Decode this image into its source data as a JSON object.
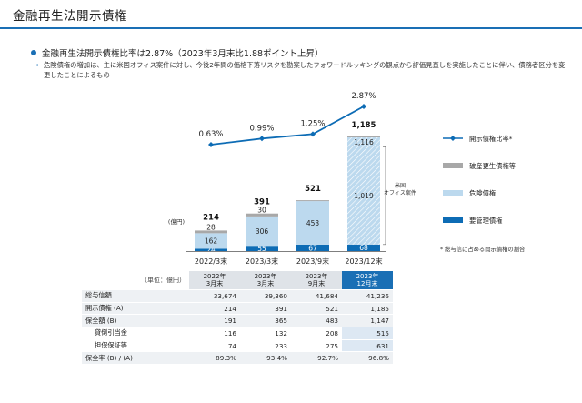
{
  "title": "金融再生法開示債権",
  "bullet_main": "金融再生法開示債権比率は2.87%（2023年3月末比1.88ポイント上昇）",
  "bullet_sub": "危険債権の増加は、主に米国オフィス案件に対し、今後2年間の価格下落リスクを勘案したフォワードルッキングの観点から評価見直しを実施したことに伴い、債務者区分を変更したことによるもの",
  "chart_data": {
    "type": "bar",
    "categories": [
      "2022/3末",
      "2023/3末",
      "2023/9末",
      "2023/12末"
    ],
    "unit_label": "(億円)",
    "series": [
      {
        "name": "要管理債権",
        "values": [
          24,
          55,
          67,
          68
        ],
        "labels": [
          "24",
          "55",
          "67",
          "68"
        ],
        "color": "#0d6cb5"
      },
      {
        "name": "危険債権",
        "values": [
          162,
          306,
          453,
          1116
        ],
        "labels": [
          "162",
          "306",
          "453",
          "1,116"
        ],
        "color": "#bcd9ee"
      },
      {
        "name": "破産更生債権等",
        "values": [
          28,
          30,
          1,
          1
        ],
        "labels": [
          "28",
          "30",
          "",
          ""
        ],
        "color": "#a8a8a8"
      }
    ],
    "totals": [
      "214",
      "391",
      "521",
      "1,185"
    ],
    "us_office_value": "1,019",
    "us_office_label": [
      "米国",
      "オフィス案件"
    ],
    "ratio_series": {
      "name": "開示債権比率",
      "values": [
        0.63,
        0.99,
        1.25,
        2.87
      ],
      "labels": [
        "0.63%",
        "0.99%",
        "1.25%",
        "2.87%"
      ],
      "color": "#0d6cb5"
    },
    "legend": [
      "開示債権比率*",
      "破産更生債権等",
      "危険債権",
      "要管理債権"
    ],
    "footnote": "* 総与信に占める開示債権の割合",
    "ylim": [
      0,
      1250
    ]
  },
  "table": {
    "unit": "（単位：億円）",
    "headers": [
      [
        "2022年",
        "3月末"
      ],
      [
        "2023年",
        "3月末"
      ],
      [
        "2023年",
        "9月末"
      ],
      [
        "2023年",
        "12月末"
      ]
    ],
    "rows": [
      {
        "label": "総与信額",
        "values": [
          "33,674",
          "39,360",
          "41,684",
          "41,236"
        ],
        "indent": false
      },
      {
        "label": "開示債権 (A)",
        "values": [
          "214",
          "391",
          "521",
          "1,185"
        ],
        "indent": false
      },
      {
        "label": "保全額 (B)",
        "values": [
          "191",
          "365",
          "483",
          "1,147"
        ],
        "indent": false
      },
      {
        "label": "貸倒引当金",
        "values": [
          "116",
          "132",
          "208",
          "515"
        ],
        "indent": true
      },
      {
        "label": "担保保証等",
        "values": [
          "74",
          "233",
          "275",
          "631"
        ],
        "indent": true
      },
      {
        "label": "保全率 (B) / (A)",
        "values": [
          "89.3%",
          "93.4%",
          "92.7%",
          "96.8%"
        ],
        "indent": false
      }
    ]
  }
}
